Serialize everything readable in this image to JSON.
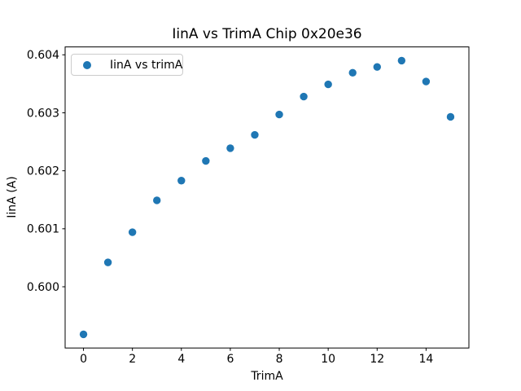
{
  "figure": {
    "background": "#ffffff"
  },
  "colors": {
    "marker": "#1f77b4",
    "axes_spine": "#000000",
    "text": "#000000",
    "legend_border": "#cccccc"
  },
  "chart_data": {
    "type": "scatter",
    "title": "IinA vs TrimA Chip 0x20e36",
    "xlabel": "TrimA",
    "ylabel": "IinA (A)",
    "legend": [
      "IinA vs trimA"
    ],
    "legend_position": "upper left",
    "grid": false,
    "marker_color": "#1f77b4",
    "x": [
      0,
      1,
      2,
      3,
      4,
      5,
      6,
      7,
      8,
      9,
      10,
      11,
      12,
      13,
      14,
      15
    ],
    "y": [
      0.59918,
      0.60042,
      0.60094,
      0.60149,
      0.60183,
      0.60217,
      0.60239,
      0.60262,
      0.60297,
      0.60328,
      0.60349,
      0.60369,
      0.60379,
      0.6039,
      0.60354,
      0.60293
    ],
    "xlim": [
      -0.75,
      15.75
    ],
    "ylim": [
      0.598944,
      0.604136
    ],
    "xticks": [
      0,
      2,
      4,
      6,
      8,
      10,
      12,
      14
    ],
    "xticklabels": [
      "0",
      "2",
      "4",
      "6",
      "8",
      "10",
      "12",
      "14"
    ],
    "yticks": [
      0.6,
      0.601,
      0.602,
      0.603,
      0.604
    ],
    "yticklabels": [
      "0.600",
      "0.601",
      "0.602",
      "0.603",
      "0.604"
    ]
  }
}
